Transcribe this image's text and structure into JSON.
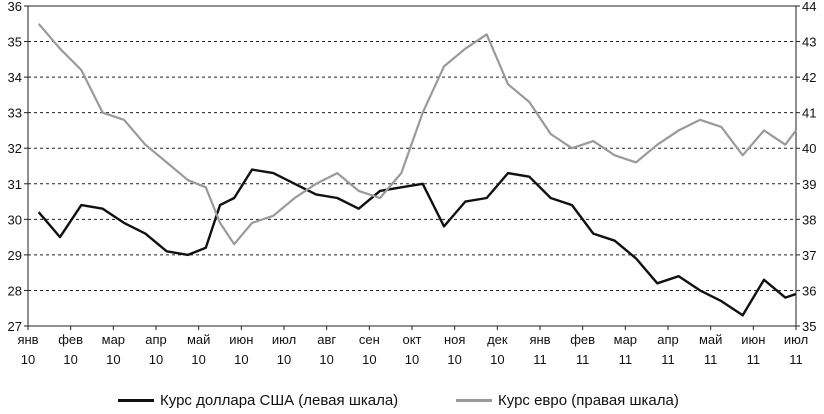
{
  "chart_data": {
    "type": "line",
    "title": "",
    "xlabel": "",
    "ylabel_left": "",
    "ylabel_right": "",
    "ylim_left": [
      27,
      36
    ],
    "ylim_right": [
      35,
      44
    ],
    "y_ticks_left": [
      "27",
      "28",
      "29",
      "30",
      "31",
      "32",
      "33",
      "34",
      "35",
      "36"
    ],
    "y_ticks_right": [
      "35",
      "36",
      "37",
      "38",
      "39",
      "40",
      "41",
      "42",
      "43",
      "44"
    ],
    "grid": "horizontal-dashed",
    "legend_position": "bottom",
    "x_ticks": [
      {
        "month": "янв",
        "year": "10"
      },
      {
        "month": "фев",
        "year": "10"
      },
      {
        "month": "мар",
        "year": "10"
      },
      {
        "month": "апр",
        "year": "10"
      },
      {
        "month": "май",
        "year": "10"
      },
      {
        "month": "июн",
        "year": "10"
      },
      {
        "month": "июл",
        "year": "10"
      },
      {
        "month": "авг",
        "year": "10"
      },
      {
        "month": "сен",
        "year": "10"
      },
      {
        "month": "окт",
        "year": "10"
      },
      {
        "month": "ноя",
        "year": "10"
      },
      {
        "month": "дек",
        "year": "10"
      },
      {
        "month": "янв",
        "year": "11"
      },
      {
        "month": "фев",
        "year": "11"
      },
      {
        "month": "мар",
        "year": "11"
      },
      {
        "month": "апр",
        "year": "11"
      },
      {
        "month": "май",
        "year": "11"
      },
      {
        "month": "июн",
        "year": "11"
      },
      {
        "month": "июл",
        "year": "11"
      }
    ],
    "series": [
      {
        "name": "Курс доллара США (левая шкала)",
        "axis": "left",
        "color": "#111111",
        "x": [
          "2010-01",
          "2010-01",
          "2010-02",
          "2010-02",
          "2010-03",
          "2010-03",
          "2010-04",
          "2010-04",
          "2010-05",
          "2010-05",
          "2010-05",
          "2010-06",
          "2010-06",
          "2010-07",
          "2010-07",
          "2010-08",
          "2010-08",
          "2010-09",
          "2010-09",
          "2010-10",
          "2010-10",
          "2010-11",
          "2010-11",
          "2010-12",
          "2010-12",
          "2011-01",
          "2011-01",
          "2011-02",
          "2011-02",
          "2011-03",
          "2011-03",
          "2011-04",
          "2011-04",
          "2011-05",
          "2011-05",
          "2011-06",
          "2011-06",
          "2011-07"
        ],
        "values": [
          30.2,
          29.5,
          30.4,
          30.3,
          29.9,
          29.6,
          29.1,
          29.0,
          29.2,
          30.4,
          30.6,
          31.4,
          31.3,
          31.0,
          30.7,
          30.6,
          30.3,
          30.8,
          30.9,
          31.0,
          29.8,
          30.5,
          30.6,
          31.3,
          31.2,
          30.6,
          30.4,
          29.6,
          29.4,
          28.9,
          28.2,
          28.4,
          28.0,
          27.7,
          27.3,
          28.3,
          27.8,
          27.9
        ]
      },
      {
        "name": "Курс евро (правая шкала)",
        "axis": "right",
        "color": "#9a9a9a",
        "x": [
          "2010-01",
          "2010-01",
          "2010-02",
          "2010-02",
          "2010-03",
          "2010-03",
          "2010-04",
          "2010-04",
          "2010-05",
          "2010-05",
          "2010-05",
          "2010-06",
          "2010-06",
          "2010-07",
          "2010-07",
          "2010-08",
          "2010-08",
          "2010-09",
          "2010-09",
          "2010-10",
          "2010-10",
          "2010-11",
          "2010-11",
          "2010-12",
          "2010-12",
          "2011-01",
          "2011-01",
          "2011-02",
          "2011-02",
          "2011-03",
          "2011-03",
          "2011-04",
          "2011-04",
          "2011-05",
          "2011-05",
          "2011-06",
          "2011-06",
          "2011-07"
        ],
        "values": [
          43.5,
          42.8,
          42.2,
          41.0,
          40.8,
          40.1,
          39.6,
          39.1,
          38.9,
          37.9,
          37.3,
          37.9,
          38.1,
          38.6,
          39.0,
          39.3,
          38.8,
          38.6,
          39.3,
          41.0,
          42.3,
          42.8,
          43.2,
          41.8,
          41.3,
          40.4,
          40.0,
          40.2,
          39.8,
          39.6,
          40.1,
          40.5,
          40.8,
          40.6,
          39.8,
          40.5,
          40.1,
          40.5
        ]
      }
    ]
  }
}
